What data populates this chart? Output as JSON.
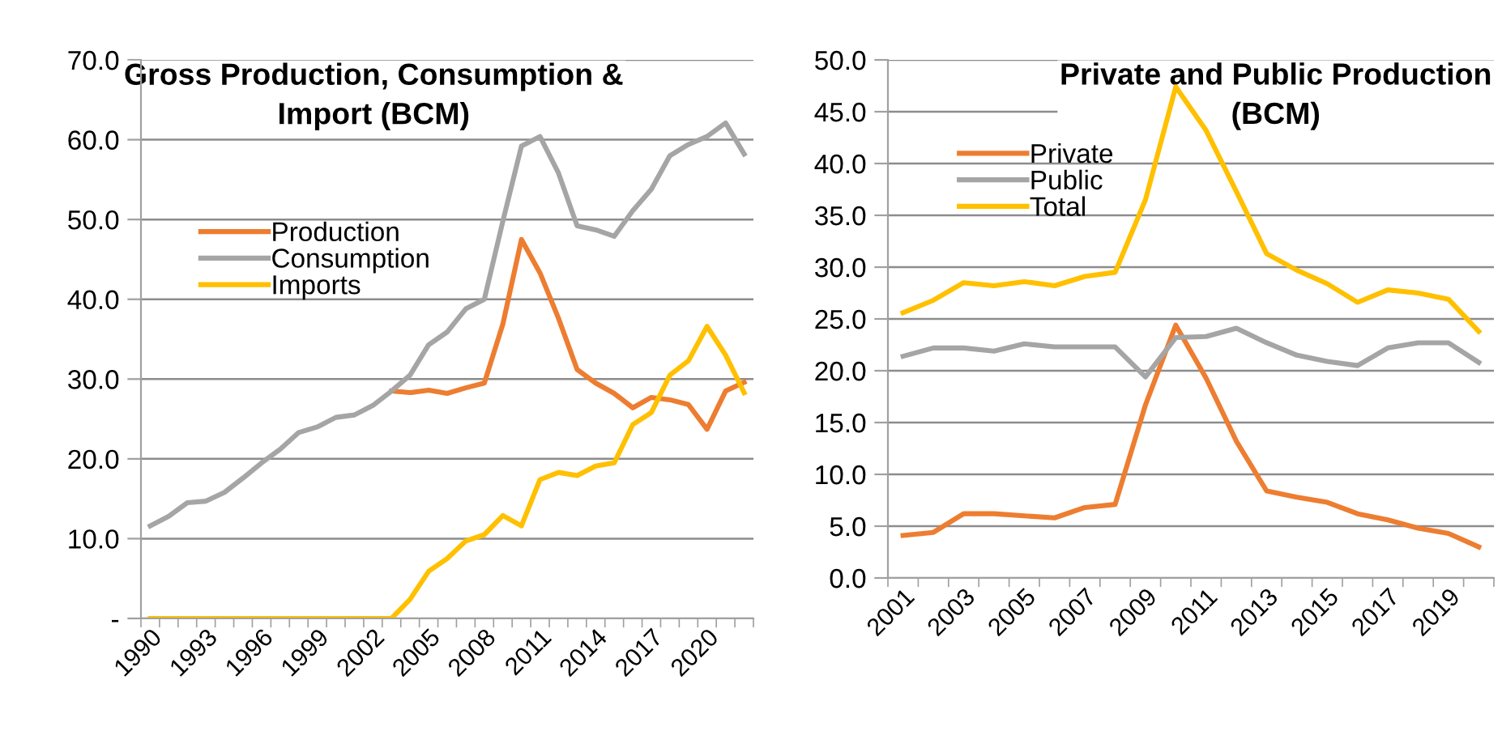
{
  "chart_data": [
    {
      "type": "line",
      "title": "Gross Production, Consumption &\nImport (BCM)",
      "categories": [
        "1990",
        null,
        null,
        "1993",
        null,
        null,
        "1996",
        null,
        null,
        "1999",
        null,
        null,
        "2002",
        null,
        null,
        "2005",
        null,
        null,
        "2008",
        null,
        null,
        "2011",
        null,
        null,
        "2014",
        null,
        null,
        "2017",
        null,
        null,
        "2020",
        null,
        null
      ],
      "series": [
        {
          "name": "Production",
          "color": "#ed7d31",
          "values": [
            null,
            null,
            null,
            null,
            null,
            null,
            null,
            null,
            null,
            null,
            null,
            null,
            null,
            28.5,
            28.3,
            28.6,
            28.2,
            28.9,
            29.5,
            36.9,
            47.5,
            43.3,
            37.6,
            31.2,
            29.5,
            28.2,
            26.4,
            27.7,
            27.4,
            26.8,
            23.7,
            28.5,
            29.6
          ]
        },
        {
          "name": "Consumption",
          "color": "#a5a5a5",
          "values": [
            11.6,
            12.8,
            14.5,
            14.7,
            15.8,
            17.6,
            19.5,
            21.2,
            23.3,
            24.0,
            25.2,
            25.5,
            26.7,
            28.5,
            30.5,
            34.3,
            35.9,
            38.8,
            40.0,
            49.8,
            59.2,
            60.4,
            55.8,
            49.2,
            48.7,
            47.9,
            51.1,
            53.8,
            58.0,
            59.4,
            60.4,
            62.1,
            58.2
          ]
        },
        {
          "name": "Imports",
          "color": "#ffc000",
          "values": [
            0,
            0,
            0,
            0,
            0,
            0,
            0,
            0,
            0,
            0,
            0,
            0,
            0,
            0,
            2.4,
            5.9,
            7.5,
            9.7,
            10.5,
            12.9,
            11.6,
            17.4,
            18.3,
            17.9,
            19.1,
            19.5,
            24.3,
            25.8,
            30.5,
            32.3,
            36.6,
            33.0,
            28.3
          ]
        }
      ],
      "ylim": [
        0,
        70
      ],
      "yticks": [
        {
          "value": 0,
          "label": "-"
        },
        {
          "value": 10,
          "label": "10.0"
        },
        {
          "value": 20,
          "label": "20.0"
        },
        {
          "value": 30,
          "label": "30.0"
        },
        {
          "value": 40,
          "label": "40.0"
        },
        {
          "value": 50,
          "label": "50.0"
        },
        {
          "value": 60,
          "label": "60.0"
        },
        {
          "value": 70,
          "label": "70.0"
        }
      ],
      "grid": "y",
      "legend": "top left",
      "marker": "none",
      "line_style": "solid"
    },
    {
      "type": "line",
      "title": "Private and Public Production\n(BCM)",
      "categories": [
        "2001",
        null,
        "2003",
        null,
        "2005",
        null,
        "2007",
        null,
        "2009",
        null,
        "2011",
        null,
        "2013",
        null,
        "2015",
        null,
        "2017",
        null,
        "2019",
        null
      ],
      "series": [
        {
          "name": "Private",
          "color": "#ed7d31",
          "values": [
            4.1,
            4.4,
            6.2,
            6.2,
            6.0,
            5.8,
            6.8,
            7.1,
            16.7,
            24.4,
            19.3,
            13.2,
            8.4,
            7.8,
            7.3,
            6.2,
            5.6,
            4.8,
            4.3,
            3.0
          ]
        },
        {
          "name": "Public",
          "color": "#a5a5a5",
          "values": [
            21.4,
            22.2,
            22.2,
            21.9,
            22.6,
            22.3,
            22.3,
            22.3,
            19.4,
            23.2,
            23.3,
            24.1,
            22.7,
            21.5,
            20.9,
            20.5,
            22.2,
            22.7,
            22.7,
            20.8
          ]
        },
        {
          "name": "Total",
          "color": "#ffc000",
          "values": [
            25.6,
            26.8,
            28.5,
            28.2,
            28.6,
            28.2,
            29.1,
            29.5,
            36.5,
            47.4,
            43.2,
            37.3,
            31.3,
            29.7,
            28.4,
            26.6,
            27.8,
            27.5,
            26.9,
            23.8
          ]
        }
      ],
      "ylim": [
        0,
        50
      ],
      "yticks": [
        {
          "value": 0,
          "label": "0.0"
        },
        {
          "value": 5,
          "label": "5.0"
        },
        {
          "value": 10,
          "label": "10.0"
        },
        {
          "value": 15,
          "label": "15.0"
        },
        {
          "value": 20,
          "label": "20.0"
        },
        {
          "value": 25,
          "label": "25.0"
        },
        {
          "value": 30,
          "label": "30.0"
        },
        {
          "value": 35,
          "label": "35.0"
        },
        {
          "value": 40,
          "label": "40.0"
        },
        {
          "value": 45,
          "label": "45.0"
        },
        {
          "value": 50,
          "label": "50.0"
        }
      ],
      "grid": "y",
      "legend": "top left",
      "marker": "none",
      "line_style": "solid"
    }
  ]
}
